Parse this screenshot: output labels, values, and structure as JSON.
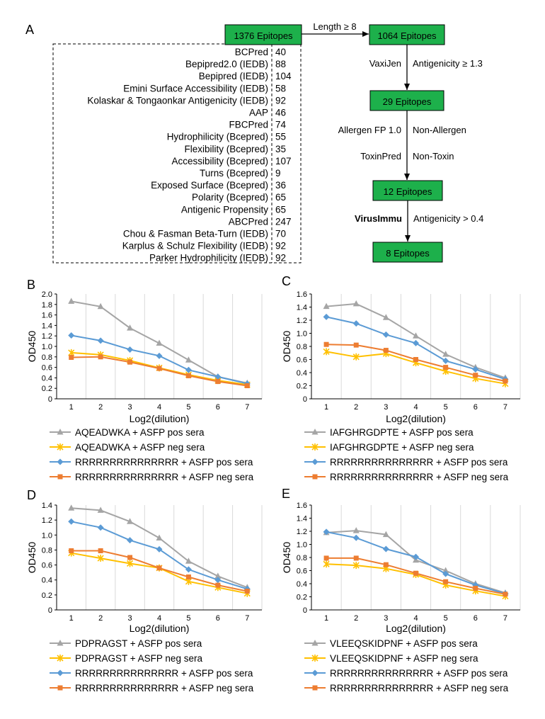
{
  "panel_a": {
    "panel_letter": "A",
    "start_box": "1376 Epitopes",
    "step1_label": "Length ≥ 8",
    "box2": "1064 Epitopes",
    "step2_left": "VaxiJen",
    "step2_right": "Antigenicity ≥ 1.3",
    "box3": "29 Epitopes",
    "step3a_left": "Allergen FP 1.0",
    "step3a_right": "Non-Allergen",
    "step3b_left": "ToxinPred",
    "step3b_right": "Non-Toxin",
    "box4": "12 Epitopes",
    "step4_left": "VirusImmu",
    "step4_right": "Antigenicity > 0.4",
    "box5": "8 Epitopes",
    "box_color": "#1db04b",
    "tools": [
      {
        "name": "BCPred",
        "count": "40"
      },
      {
        "name": "Bepipred2.0 (IEDB)",
        "count": "88"
      },
      {
        "name": "Bepipred (IEDB)",
        "count": "104"
      },
      {
        "name": "Emini Surface Accessibility (IEDB)",
        "count": "58"
      },
      {
        "name": "Kolaskar & Tongaonkar Antigenicity (IEDB)",
        "count": "92"
      },
      {
        "name": "AAP",
        "count": "46"
      },
      {
        "name": "FBCPred",
        "count": "74"
      },
      {
        "name": "Hydrophilicity (Bcepred)",
        "count": "55"
      },
      {
        "name": "Flexibility (Bcepred)",
        "count": "35"
      },
      {
        "name": "Accessibility (Bcepred)",
        "count": "107"
      },
      {
        "name": "Turns (Bcepred)",
        "count": "9"
      },
      {
        "name": "Exposed Surface (Bcepred)",
        "count": "36"
      },
      {
        "name": "Polarity (Bcepred)",
        "count": "65"
      },
      {
        "name": "Antigenic Propensity",
        "count": "65"
      },
      {
        "name": "ABCPred",
        "count": "247"
      },
      {
        "name": "Chou & Fasman Beta-Turn (IEDB)",
        "count": "70"
      },
      {
        "name": "Karplus & Schulz Flexibility (IEDB)",
        "count": "92"
      },
      {
        "name": "Parker Hydrophilicity (IEDB)",
        "count": "92"
      }
    ]
  },
  "chart_data": [
    {
      "type": "line",
      "panel": "B",
      "xlabel": "Log2(dilution)",
      "ylabel": "OD450",
      "x": [
        1,
        2,
        3,
        4,
        5,
        6,
        7
      ],
      "xticks": [
        "1",
        "2",
        "3",
        "4",
        "5",
        "6",
        "7"
      ],
      "ylim": [
        0,
        2.0
      ],
      "yticks": [
        "0",
        "0.2",
        "0.4",
        "0.6",
        "0.8",
        "1.0",
        "1.2",
        "1.4",
        "1.6",
        "1.8",
        "2.0"
      ],
      "grid": "vertical",
      "legend_position": "bottom",
      "series": [
        {
          "name": "AQEADWKA + ASFP pos sera",
          "color": "#a5a5a5",
          "marker": "triangle",
          "values": [
            1.86,
            1.76,
            1.35,
            1.06,
            0.74,
            0.42,
            0.3
          ]
        },
        {
          "name": "AQEADWKA + ASFP neg sera",
          "color": "#ffc000",
          "marker": "x",
          "values": [
            0.88,
            0.84,
            0.73,
            0.59,
            0.46,
            0.35,
            0.27
          ]
        },
        {
          "name": "RRRRRRRRRRRRRRR + ASFP pos sera",
          "color": "#5b9bd5",
          "marker": "diamond",
          "values": [
            1.21,
            1.11,
            0.94,
            0.82,
            0.55,
            0.42,
            0.29
          ]
        },
        {
          "name": "RRRRRRRRRRRRRRR + ASFP neg sera",
          "color": "#ed7d31",
          "marker": "square",
          "values": [
            0.79,
            0.8,
            0.7,
            0.58,
            0.44,
            0.33,
            0.25
          ]
        }
      ]
    },
    {
      "type": "line",
      "panel": "C",
      "xlabel": "Log2(dilution)",
      "ylabel": "OD450",
      "x": [
        1,
        2,
        3,
        4,
        5,
        6,
        7
      ],
      "xticks": [
        "1",
        "2",
        "3",
        "4",
        "5",
        "6",
        "7"
      ],
      "ylim": [
        0,
        1.6
      ],
      "yticks": [
        "0",
        "0.2",
        "0.4",
        "0.6",
        "0.8",
        "1.0",
        "1.2",
        "1.4",
        "1.6"
      ],
      "grid": "vertical",
      "legend_position": "bottom",
      "series": [
        {
          "name": "IAFGHRGDPTE + ASFP pos sera",
          "color": "#a5a5a5",
          "marker": "triangle",
          "values": [
            1.41,
            1.45,
            1.24,
            0.96,
            0.68,
            0.48,
            0.32
          ]
        },
        {
          "name": "IAFGHRGDPTE + ASFP neg sera",
          "color": "#ffc000",
          "marker": "x",
          "values": [
            0.72,
            0.64,
            0.69,
            0.55,
            0.42,
            0.31,
            0.23
          ]
        },
        {
          "name": "RRRRRRRRRRRRRRR + ASFP pos sera",
          "color": "#5b9bd5",
          "marker": "diamond",
          "values": [
            1.25,
            1.15,
            0.98,
            0.85,
            0.58,
            0.45,
            0.3
          ]
        },
        {
          "name": "RRRRRRRRRRRRRRR + ASFP neg sera",
          "color": "#ed7d31",
          "marker": "square",
          "values": [
            0.83,
            0.82,
            0.74,
            0.6,
            0.48,
            0.36,
            0.27
          ]
        }
      ]
    },
    {
      "type": "line",
      "panel": "D",
      "xlabel": "Log2(dilution)",
      "ylabel": "OD450",
      "x": [
        1,
        2,
        3,
        4,
        5,
        6,
        7
      ],
      "xticks": [
        "1",
        "2",
        "3",
        "4",
        "5",
        "6",
        "7"
      ],
      "ylim": [
        0,
        1.4
      ],
      "yticks": [
        "0",
        "0.2",
        "0.4",
        "0.6",
        "0.8",
        "1.0",
        "1.2",
        "1.4"
      ],
      "grid": "vertical",
      "legend_position": "bottom",
      "series": [
        {
          "name": "PDPRAGST + ASFP pos sera",
          "color": "#a5a5a5",
          "marker": "triangle",
          "values": [
            1.36,
            1.33,
            1.18,
            0.96,
            0.65,
            0.45,
            0.3
          ]
        },
        {
          "name": "PDPRAGST + ASFP neg sera",
          "color": "#ffc000",
          "marker": "x",
          "values": [
            0.76,
            0.69,
            0.62,
            0.56,
            0.38,
            0.3,
            0.22
          ]
        },
        {
          "name": "RRRRRRRRRRRRRRR + ASFP pos sera",
          "color": "#5b9bd5",
          "marker": "diamond",
          "values": [
            1.18,
            1.1,
            0.93,
            0.81,
            0.54,
            0.4,
            0.28
          ]
        },
        {
          "name": "RRRRRRRRRRRRRRR + ASFP neg sera",
          "color": "#ed7d31",
          "marker": "square",
          "values": [
            0.79,
            0.79,
            0.7,
            0.56,
            0.44,
            0.33,
            0.25
          ]
        }
      ]
    },
    {
      "type": "line",
      "panel": "E",
      "xlabel": "Log2(dilution)",
      "ylabel": "OD450",
      "x": [
        1,
        2,
        3,
        4,
        5,
        6,
        7
      ],
      "xticks": [
        "1",
        "2",
        "3",
        "4",
        "5",
        "6",
        "7"
      ],
      "ylim": [
        0,
        1.6
      ],
      "yticks": [
        "0",
        "0.2",
        "0.4",
        "0.6",
        "0.8",
        "1.0",
        "1.2",
        "1.4",
        "1.6"
      ],
      "grid": "vertical",
      "legend_position": "bottom",
      "series": [
        {
          "name": "VLEEQSKIDPNF + ASFP pos sera",
          "color": "#a5a5a5",
          "marker": "triangle",
          "values": [
            1.18,
            1.21,
            1.15,
            0.76,
            0.6,
            0.4,
            0.26
          ]
        },
        {
          "name": "VLEEQSKIDPNF + ASFP neg sera",
          "color": "#ffc000",
          "marker": "x",
          "values": [
            0.7,
            0.68,
            0.63,
            0.54,
            0.38,
            0.29,
            0.21
          ]
        },
        {
          "name": "RRRRRRRRRRRRRRR + ASFP pos sera",
          "color": "#5b9bd5",
          "marker": "diamond",
          "values": [
            1.19,
            1.1,
            0.93,
            0.81,
            0.55,
            0.38,
            0.25
          ]
        },
        {
          "name": "RRRRRRRRRRRRRRR + ASFP neg sera",
          "color": "#ed7d31",
          "marker": "square",
          "values": [
            0.79,
            0.79,
            0.69,
            0.56,
            0.43,
            0.33,
            0.24
          ]
        }
      ]
    }
  ]
}
